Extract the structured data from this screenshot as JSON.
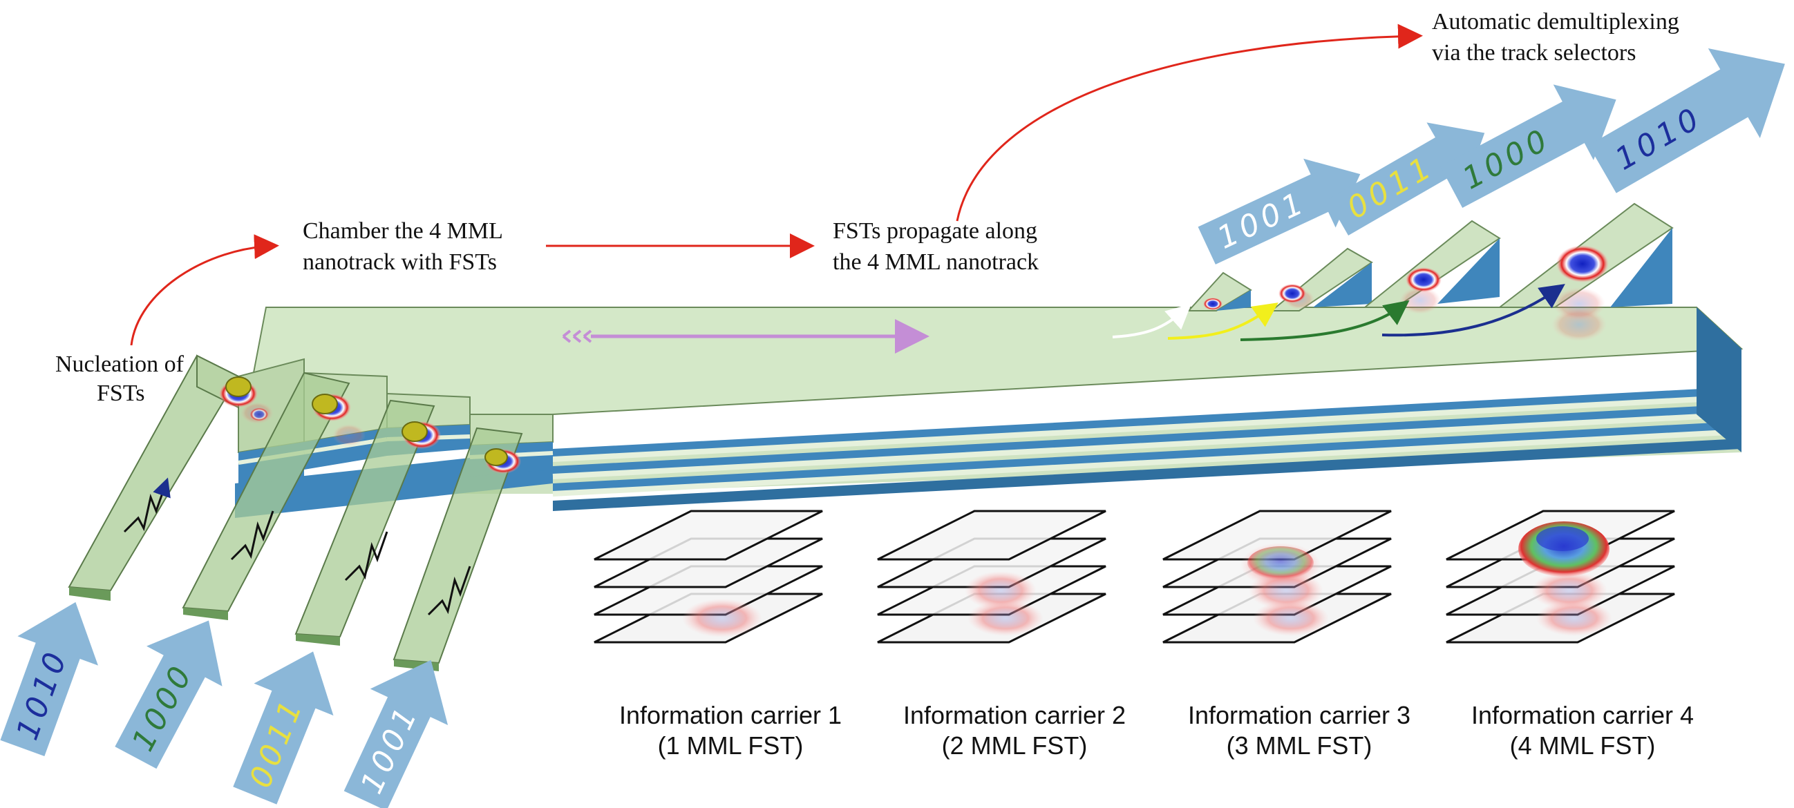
{
  "labels": {
    "nucleation": [
      "Nucleation of",
      "FSTs"
    ],
    "chamber": [
      "Chamber the 4 MML",
      "nanotrack with FSTs"
    ],
    "propagate": [
      "FSTs propagate along",
      "the 4 MML nanotrack"
    ],
    "demux": [
      "Automatic demultiplexing",
      "via the track selectors"
    ]
  },
  "input_bits": [
    {
      "bits": "1010",
      "color": "#1c2e9c"
    },
    {
      "bits": "1000",
      "color": "#2f7a3a"
    },
    {
      "bits": "0011",
      "color": "#e8e040"
    },
    {
      "bits": "1001",
      "color": "#ffffff"
    }
  ],
  "output_bits": [
    {
      "bits": "1001",
      "color": "#ffffff"
    },
    {
      "bits": "0011",
      "color": "#e8e040"
    },
    {
      "bits": "1000",
      "color": "#2f7a3a"
    },
    {
      "bits": "1010",
      "color": "#1c2e9c"
    }
  ],
  "carriers": [
    {
      "title": "Information carrier 1",
      "subtitle": "(1 MML FST)"
    },
    {
      "title": "Information carrier 2",
      "subtitle": "(2 MML FST)"
    },
    {
      "title": "Information carrier 3",
      "subtitle": "(3 MML FST)"
    },
    {
      "title": "Information carrier 4",
      "subtitle": "(4 MML FST)"
    }
  ],
  "colors": {
    "track_top": "#d4e8c8",
    "track_layer_blue": "#3f86bc",
    "track_layer_green": "#cfe3c2",
    "arrow_blue": "#8bb7d8",
    "flow_arrow": "#e0261b",
    "propagation_arrow": "#c48ed6",
    "path_colors": [
      "#ffffff",
      "#f2ef1c",
      "#2a7a2f",
      "#1b2f8f"
    ]
  }
}
